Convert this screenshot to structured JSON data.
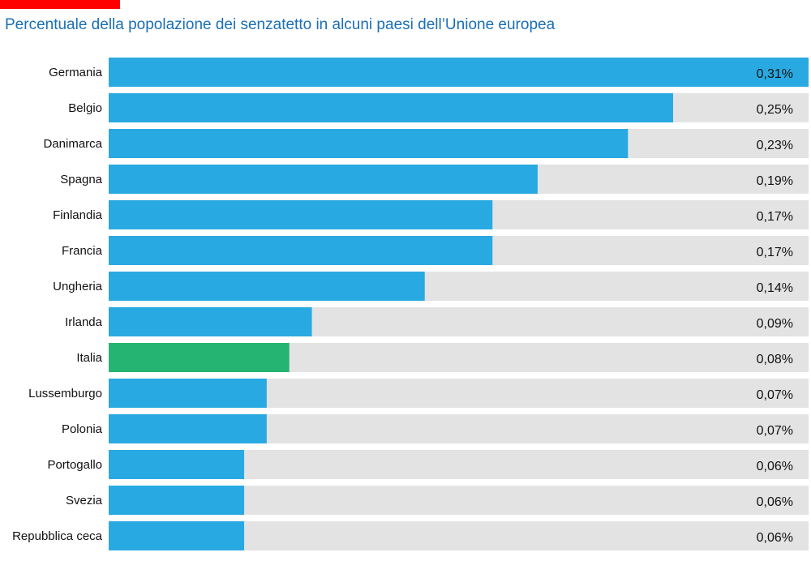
{
  "title": "Percentuale della popolazione dei senzatetto in alcuni paesi dell’Unione europea",
  "colors": {
    "accent": "#ff0000",
    "title": "#1a6fb8",
    "bar": "#29a9e1",
    "highlight": "#25b472",
    "track": "#e3e3e3"
  },
  "chart_data": {
    "type": "bar",
    "orientation": "horizontal",
    "title": "Percentuale della popolazione dei senzatetto in alcuni paesi dell’Unione europea",
    "xlabel": "",
    "ylabel": "",
    "unit": "%",
    "xlim": [
      0,
      0.31
    ],
    "grid": false,
    "highlight": "Italia",
    "categories": [
      "Germania",
      "Belgio",
      "Danimarca",
      "Spagna",
      "Finlandia",
      "Francia",
      "Ungheria",
      "Irlanda",
      "Italia",
      "Lussemburgo",
      "Polonia",
      "Portogallo",
      "Svezia",
      "Repubblica ceca"
    ],
    "values": [
      0.31,
      0.25,
      0.23,
      0.19,
      0.17,
      0.17,
      0.14,
      0.09,
      0.08,
      0.07,
      0.07,
      0.06,
      0.06,
      0.06
    ],
    "value_labels": [
      "0,31%",
      "0,25%",
      "0,23%",
      "0,19%",
      "0,17%",
      "0,17%",
      "0,14%",
      "0,09%",
      "0,08%",
      "0,07%",
      "0,07%",
      "0,06%",
      "0,06%",
      "0,06%"
    ]
  }
}
